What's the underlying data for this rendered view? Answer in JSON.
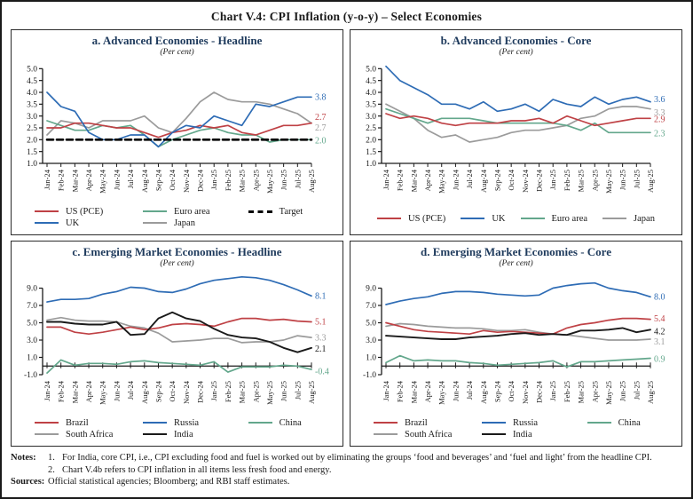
{
  "figure": {
    "title": "Chart V.4: CPI Inflation (y-o-y) – Select Economies"
  },
  "months": [
    "Jan-24",
    "Feb-24",
    "Mar-24",
    "Apr-24",
    "May-24",
    "Jun-24",
    "Jul-24",
    "Aug-24",
    "Sep-24",
    "Oct-24",
    "Nov-24",
    "Dec-24",
    "Jan-25",
    "Feb-25",
    "Mar-25",
    "Apr-25",
    "May-25",
    "Jun-25",
    "Jul-25",
    "Aug-25"
  ],
  "chart_data": [
    {
      "type": "line",
      "title": "a. Advanced Economies - Headline",
      "subtitle": "(Per cent)",
      "ylabel": "Per cent",
      "ylim": [
        1.0,
        5.0
      ],
      "yticks": [
        5.0,
        4.5,
        4.0,
        3.5,
        3.0,
        2.5,
        2.0,
        1.5,
        1.0
      ],
      "scale_min": 1.0,
      "scale_max": 5.35,
      "x_axis_at": 1.0,
      "grid": false,
      "legend_layout": "grid3",
      "legend_rows": [
        [
          "US (PCE)",
          "Euro area",
          "Target"
        ],
        [
          "UK",
          "Japan"
        ]
      ],
      "series": [
        {
          "name": "Japan",
          "color": "#9b9b9b",
          "end_label": "2.7",
          "end_dy": 5,
          "values": [
            2.2,
            2.8,
            2.7,
            2.5,
            2.8,
            2.8,
            2.8,
            3.0,
            2.5,
            2.3,
            2.9,
            3.6,
            4.0,
            3.7,
            3.6,
            3.6,
            3.5,
            3.3,
            3.1,
            2.7
          ]
        },
        {
          "name": "Euro area",
          "color": "#63a78c",
          "end_label": "2.0",
          "end_dy": 1,
          "values": [
            2.8,
            2.6,
            2.4,
            2.4,
            2.6,
            2.5,
            2.6,
            2.2,
            1.7,
            2.0,
            2.2,
            2.4,
            2.5,
            2.3,
            2.2,
            2.2,
            1.9,
            2.0,
            2.0,
            2.0
          ]
        },
        {
          "name": "US (PCE)",
          "color": "#bf4145",
          "end_label": "2.7",
          "end_dy": -7,
          "values": [
            2.5,
            2.5,
            2.7,
            2.7,
            2.6,
            2.5,
            2.5,
            2.3,
            2.1,
            2.3,
            2.4,
            2.6,
            2.5,
            2.6,
            2.3,
            2.2,
            2.4,
            2.6,
            2.6,
            2.7
          ]
        },
        {
          "name": "UK",
          "color": "#2e6cb5",
          "end_label": "3.8",
          "end_dy": 0,
          "values": [
            4.0,
            3.4,
            3.2,
            2.3,
            2.0,
            2.0,
            2.2,
            2.2,
            1.7,
            2.3,
            2.6,
            2.5,
            3.0,
            2.8,
            2.6,
            3.5,
            3.4,
            3.6,
            3.8,
            3.8
          ]
        },
        {
          "name": "Target",
          "color": "#000000",
          "dash": true,
          "width": 2.6,
          "end_label": null,
          "values": [
            2.0,
            2.0,
            2.0,
            2.0,
            2.0,
            2.0,
            2.0,
            2.0,
            2.0,
            2.0,
            2.0,
            2.0,
            2.0,
            2.0,
            2.0,
            2.0,
            2.0,
            2.0,
            2.0,
            2.0
          ]
        }
      ]
    },
    {
      "type": "line",
      "title": "b. Advanced Economies - Core",
      "subtitle": "(Per cent)",
      "ylabel": "Per cent",
      "ylim": [
        1.0,
        5.0
      ],
      "yticks": [
        5.0,
        4.5,
        4.0,
        3.5,
        3.0,
        2.5,
        2.0,
        1.5,
        1.0
      ],
      "scale_min": 1.0,
      "scale_max": 5.35,
      "x_axis_at": 1.0,
      "grid": false,
      "legend_layout": "row4",
      "legend_rows": [
        [
          "US (PCE)",
          "UK",
          "Euro area",
          "Japan"
        ]
      ],
      "series": [
        {
          "name": "Japan",
          "color": "#9b9b9b",
          "end_label": "3.3",
          "end_dy": 4,
          "values": [
            3.5,
            3.2,
            2.9,
            2.4,
            2.1,
            2.2,
            1.9,
            2.0,
            2.1,
            2.3,
            2.4,
            2.4,
            2.5,
            2.6,
            2.9,
            3.0,
            3.3,
            3.4,
            3.4,
            3.3
          ]
        },
        {
          "name": "Euro area",
          "color": "#63a78c",
          "end_label": "2.3",
          "end_dy": 1,
          "values": [
            3.3,
            3.1,
            2.9,
            2.7,
            2.9,
            2.9,
            2.9,
            2.8,
            2.7,
            2.7,
            2.7,
            2.7,
            2.7,
            2.6,
            2.4,
            2.7,
            2.3,
            2.3,
            2.3,
            2.3
          ]
        },
        {
          "name": "US (PCE)",
          "color": "#bf4145",
          "end_label": "2.9",
          "end_dy": 1,
          "values": [
            3.1,
            2.9,
            3.0,
            2.9,
            2.7,
            2.6,
            2.7,
            2.7,
            2.7,
            2.8,
            2.8,
            2.9,
            2.7,
            3.0,
            2.8,
            2.6,
            2.7,
            2.8,
            2.9,
            2.9
          ]
        },
        {
          "name": "UK",
          "color": "#2e6cb5",
          "end_label": "3.6",
          "end_dy": -3,
          "values": [
            5.1,
            4.5,
            4.2,
            3.9,
            3.5,
            3.5,
            3.3,
            3.6,
            3.2,
            3.3,
            3.5,
            3.2,
            3.7,
            3.5,
            3.4,
            3.8,
            3.5,
            3.7,
            3.8,
            3.6
          ]
        }
      ]
    },
    {
      "type": "line",
      "title": "c. Emerging Market Economies - Headline",
      "subtitle": "(Per cent)",
      "ylabel": "Per cent",
      "ylim": [
        -1.0,
        9.0
      ],
      "yticks": [
        9.0,
        7.0,
        5.0,
        3.0,
        1.0,
        -1.0
      ],
      "scale_min": -1.0,
      "scale_max": 10.9,
      "x_axis_at": 0,
      "grid": false,
      "legend_layout": "grid3",
      "legend_rows": [
        [
          "Brazil",
          "Russia",
          "China"
        ],
        [
          "South Africa",
          "India"
        ]
      ],
      "series": [
        {
          "name": "South Africa",
          "color": "#9b9b9b",
          "end_label": "3.3",
          "end_dy": 0,
          "values": [
            5.3,
            5.6,
            5.3,
            5.2,
            5.2,
            5.1,
            4.6,
            4.4,
            3.8,
            2.8,
            2.9,
            3.0,
            3.2,
            3.2,
            2.7,
            2.8,
            2.8,
            3.0,
            3.5,
            3.3
          ]
        },
        {
          "name": "China",
          "color": "#63a78c",
          "end_label": "-0.4",
          "end_dy": 2,
          "values": [
            -0.8,
            0.7,
            0.1,
            0.3,
            0.3,
            0.2,
            0.5,
            0.6,
            0.4,
            0.3,
            0.2,
            0.1,
            0.5,
            -0.7,
            -0.1,
            -0.1,
            -0.1,
            0.1,
            0.0,
            -0.4
          ]
        },
        {
          "name": "Brazil",
          "color": "#bf4145",
          "end_label": "5.1",
          "end_dy": 0,
          "values": [
            4.5,
            4.5,
            3.9,
            3.7,
            3.9,
            4.2,
            4.5,
            4.2,
            4.4,
            4.8,
            4.9,
            4.8,
            4.6,
            5.1,
            5.5,
            5.5,
            5.3,
            5.4,
            5.2,
            5.1
          ]
        },
        {
          "name": "India",
          "color": "#1a1a1a",
          "width": 1.9,
          "end_label": "2.1",
          "end_dy": 1,
          "values": [
            5.1,
            5.1,
            4.9,
            4.8,
            4.8,
            5.1,
            3.6,
            3.7,
            5.5,
            6.2,
            5.5,
            5.2,
            4.3,
            3.6,
            3.3,
            3.2,
            2.8,
            2.1,
            1.6,
            2.1
          ]
        },
        {
          "name": "Russia",
          "color": "#2e6cb5",
          "end_label": "8.1",
          "end_dy": 0,
          "values": [
            7.4,
            7.7,
            7.7,
            7.8,
            8.3,
            8.6,
            9.1,
            9.0,
            8.6,
            8.5,
            8.9,
            9.5,
            9.9,
            10.1,
            10.3,
            10.2,
            9.9,
            9.4,
            8.8,
            8.1
          ]
        }
      ]
    },
    {
      "type": "line",
      "title": "d. Emerging Market Economies - Core",
      "subtitle": "(Per cent)",
      "ylabel": "Per cent",
      "ylim": [
        -1.0,
        9.0
      ],
      "yticks": [
        9.0,
        7.0,
        5.0,
        3.0,
        1.0,
        -1.0
      ],
      "scale_min": -1.0,
      "scale_max": 10.9,
      "x_axis_at": 0,
      "grid": false,
      "legend_layout": "grid3",
      "legend_rows": [
        [
          "Brazil",
          "Russia",
          "China"
        ],
        [
          "South Africa",
          "India"
        ]
      ],
      "series": [
        {
          "name": "South Africa",
          "color": "#9b9b9b",
          "end_label": "3.1",
          "end_dy": 3,
          "values": [
            4.6,
            4.9,
            4.8,
            4.6,
            4.5,
            4.4,
            4.4,
            4.3,
            4.1,
            4.1,
            4.2,
            3.9,
            3.7,
            3.6,
            3.4,
            3.2,
            3.0,
            3.0,
            3.0,
            3.1
          ]
        },
        {
          "name": "China",
          "color": "#63a78c",
          "end_label": "0.9",
          "end_dy": 1,
          "values": [
            0.4,
            1.2,
            0.6,
            0.7,
            0.6,
            0.6,
            0.4,
            0.3,
            0.1,
            0.2,
            0.3,
            0.4,
            0.6,
            -0.1,
            0.5,
            0.5,
            0.6,
            0.7,
            0.8,
            0.9
          ]
        },
        {
          "name": "Brazil",
          "color": "#bf4145",
          "end_label": "5.4",
          "end_dy": -1,
          "values": [
            5.0,
            4.6,
            4.2,
            4.0,
            3.9,
            3.8,
            3.7,
            4.1,
            3.9,
            4.0,
            3.9,
            3.8,
            3.7,
            4.4,
            4.8,
            5.0,
            5.3,
            5.5,
            5.5,
            5.4
          ]
        },
        {
          "name": "India",
          "color": "#1a1a1a",
          "width": 1.9,
          "end_label": "4.2",
          "end_dy": 2,
          "values": [
            3.5,
            3.4,
            3.3,
            3.2,
            3.1,
            3.1,
            3.3,
            3.4,
            3.5,
            3.7,
            3.8,
            3.6,
            3.7,
            3.6,
            4.1,
            4.1,
            4.2,
            4.4,
            3.9,
            4.2
          ]
        },
        {
          "name": "Russia",
          "color": "#2e6cb5",
          "end_label": "8.0",
          "end_dy": 0,
          "values": [
            7.1,
            7.5,
            7.8,
            8.0,
            8.4,
            8.6,
            8.6,
            8.5,
            8.3,
            8.2,
            8.1,
            8.2,
            9.0,
            9.3,
            9.5,
            9.6,
            9.0,
            8.7,
            8.5,
            8.0
          ]
        }
      ]
    }
  ],
  "notes": {
    "label": "Notes:",
    "items": [
      {
        "num": "1.",
        "text": "For India, core CPI, i.e., CPI excluding food and fuel is worked out by eliminating the groups ‘food and beverages’ and ‘fuel and light’ from the headline CPI."
      },
      {
        "num": "2.",
        "text": "Chart V.4b refers to CPI inflation in all items less fresh food and energy."
      }
    ],
    "sources_label": "Sources:",
    "sources": "Official statistical agencies; Bloomberg; and RBI staff estimates."
  }
}
